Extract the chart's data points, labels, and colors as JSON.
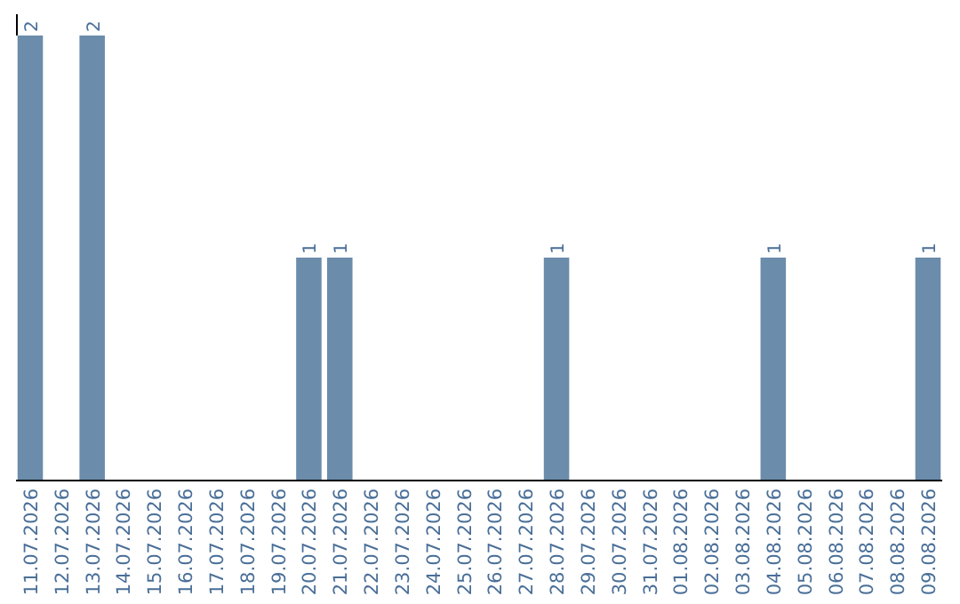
{
  "chart_data": {
    "type": "bar",
    "categories": [
      "11.07.2026",
      "12.07.2026",
      "13.07.2026",
      "14.07.2026",
      "15.07.2026",
      "16.07.2026",
      "17.07.2026",
      "18.07.2026",
      "19.07.2026",
      "20.07.2026",
      "21.07.2026",
      "22.07.2026",
      "23.07.2026",
      "24.07.2026",
      "25.07.2026",
      "26.07.2026",
      "27.07.2026",
      "28.07.2026",
      "29.07.2026",
      "30.07.2026",
      "31.07.2026",
      "01.08.2026",
      "02.08.2026",
      "03.08.2026",
      "04.08.2026",
      "05.08.2026",
      "06.08.2026",
      "07.08.2026",
      "08.08.2026",
      "09.08.2026"
    ],
    "values": [
      2,
      0,
      2,
      0,
      0,
      0,
      0,
      0,
      0,
      1,
      1,
      0,
      0,
      0,
      0,
      0,
      0,
      1,
      0,
      0,
      0,
      0,
      0,
      0,
      1,
      0,
      0,
      0,
      0,
      1
    ],
    "value_labels": [
      "2",
      null,
      "2",
      null,
      null,
      null,
      null,
      null,
      null,
      "1",
      "1",
      null,
      null,
      null,
      null,
      null,
      null,
      "1",
      null,
      null,
      null,
      null,
      null,
      null,
      "1",
      null,
      null,
      null,
      null,
      "1"
    ],
    "color": "#6b8cab"
  }
}
